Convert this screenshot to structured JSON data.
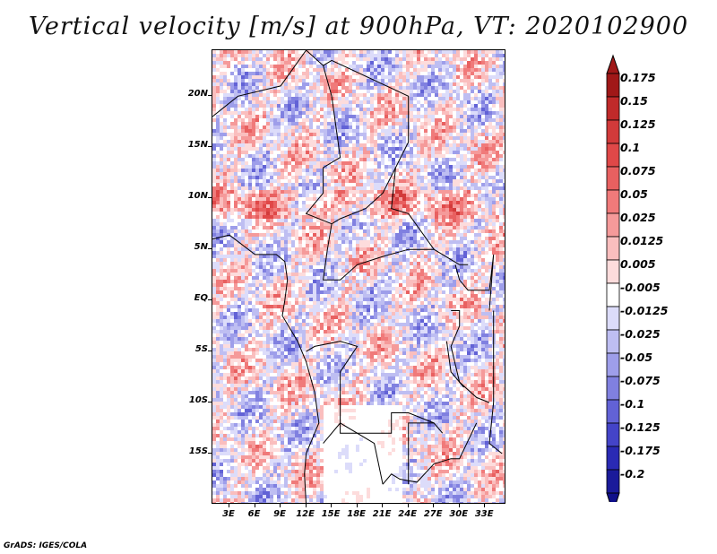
{
  "title": "Vertical velocity [m/s] at 900hPa, VT: 2020102900",
  "footer": "GrADS: IGES/COLA",
  "map": {
    "lon_range": [
      1,
      35.5
    ],
    "lat_range": [
      -20,
      24.5
    ],
    "lat_labels": [
      "20N",
      "15N",
      "10N",
      "5N",
      "EQ",
      "5S",
      "10S",
      "15S"
    ],
    "lat_values": [
      20,
      15,
      10,
      5,
      0,
      -5,
      -10,
      -15
    ],
    "lon_labels": [
      "3E",
      "6E",
      "9E",
      "12E",
      "15E",
      "18E",
      "21E",
      "24E",
      "27E",
      "30E",
      "33E"
    ],
    "lon_values": [
      3,
      6,
      9,
      12,
      15,
      18,
      21,
      24,
      27,
      30,
      33
    ]
  },
  "colorbar": {
    "labels": [
      "0.175",
      "0.15",
      "0.125",
      "0.1",
      "0.075",
      "0.05",
      "0.025",
      "0.0125",
      "0.005",
      "-0.005",
      "-0.0125",
      "-0.025",
      "-0.05",
      "-0.075",
      "-0.1",
      "-0.125",
      "-0.175",
      "-0.2"
    ],
    "colors": [
      "#a01818",
      "#c02a2a",
      "#d23a3a",
      "#e04848",
      "#e86060",
      "#f07a7a",
      "#f59a9a",
      "#fabebe",
      "#fddcdc",
      "#ffffff",
      "#dcdcfa",
      "#bebef2",
      "#9e9eea",
      "#8080e0",
      "#6262d6",
      "#4444c8",
      "#2a2ab4",
      "#1a1a9a",
      "#10108a"
    ],
    "top_color": "#a01818",
    "bottom_color": "#10108a"
  }
}
